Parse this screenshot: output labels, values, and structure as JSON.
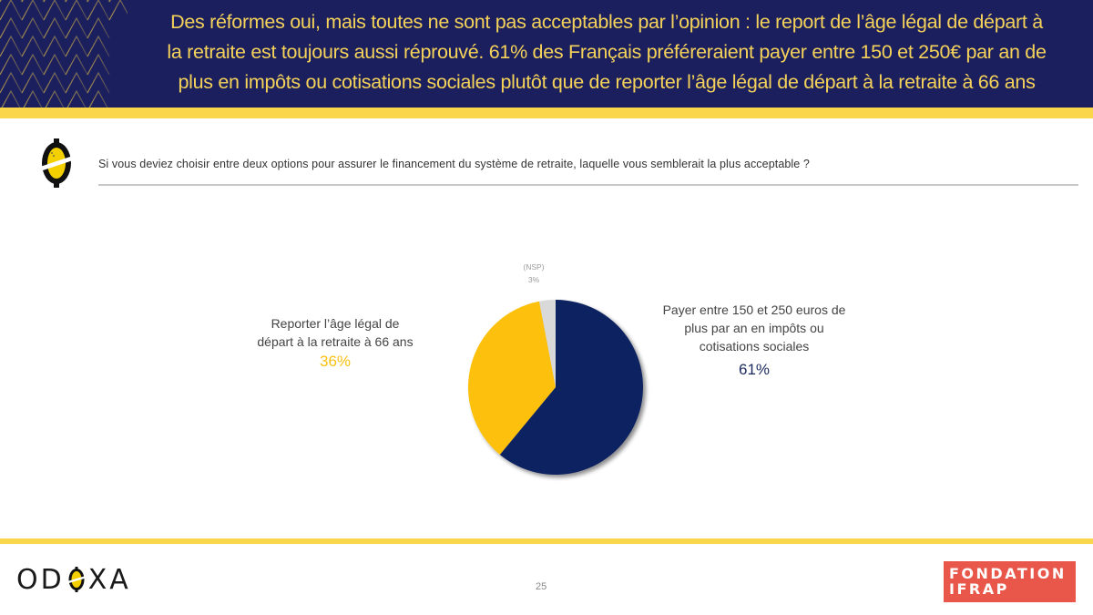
{
  "header": {
    "title": "Des réformes oui, mais toutes ne sont pas acceptables par l’opinion : le report de l’âge légal de départ à la retraite est toujours aussi réprouvé. 61% des Français préféreraient payer entre 150 et 250€ par an de plus en impôts ou cotisations sociales plutôt que de reporter l’âge légal de départ à la retraite à 66 ans",
    "title_lines": [
      "Des réformes oui, mais toutes ne sont pas acceptables par l’opinion : le report de l’âge légal de départ à",
      "la retraite est toujours aussi réprouvé. 61% des Français préféreraient payer entre 150 et 250€ par an de",
      "plus en impôts ou cotisations sociales plutôt que de reporter l’âge légal de départ à la retraite à 66 ans"
    ]
  },
  "question": {
    "icon": "odoxa-question-icon",
    "text": "Si vous deviez choisir entre deux options pour assurer le financement du système de retraite, laquelle vous semblerait la plus acceptable ?"
  },
  "chart_data": {
    "type": "pie",
    "title": "Si vous deviez choisir entre deux options pour assurer le financement du système de retraite, laquelle vous semblerait la plus acceptable ?",
    "start_angle": "top",
    "direction": "clockwise",
    "slices": [
      {
        "label": "Payer entre 150 et 250 euros de plus par an en impôts ou cotisations sociales",
        "label_lines": [
          "Payer entre 150 et 250 euros de",
          "plus par an en impôts ou",
          "cotisations sociales"
        ],
        "value": 61,
        "display": "61%",
        "color": "#0f2260"
      },
      {
        "label": "Reporter l’âge légal de départ à la retraite à 66 ans",
        "label_lines": [
          "Reporter l’âge légal de",
          "départ à la retraite à 66 ans"
        ],
        "value": 36,
        "display": "36%",
        "color": "#fcc00a"
      },
      {
        "label": "(NSP)",
        "label_lines": [
          "(NSP)"
        ],
        "value": 3,
        "display": "3%",
        "color": "#d9d9d9"
      }
    ]
  },
  "footer": {
    "brand_left": {
      "prefix": "OD",
      "suffix": "XA"
    },
    "page_number": "25",
    "brand_right": {
      "line1": "FONDATION",
      "line2": "IFRAP"
    }
  },
  "colors": {
    "header_bg": "#1b1f5e",
    "accent_yellow": "#f9d64a",
    "title_text": "#f5d35a",
    "navy": "#0f2260",
    "gold": "#fcc00a",
    "gray": "#d9d9d9",
    "ifrap_red": "#e8574a"
  }
}
